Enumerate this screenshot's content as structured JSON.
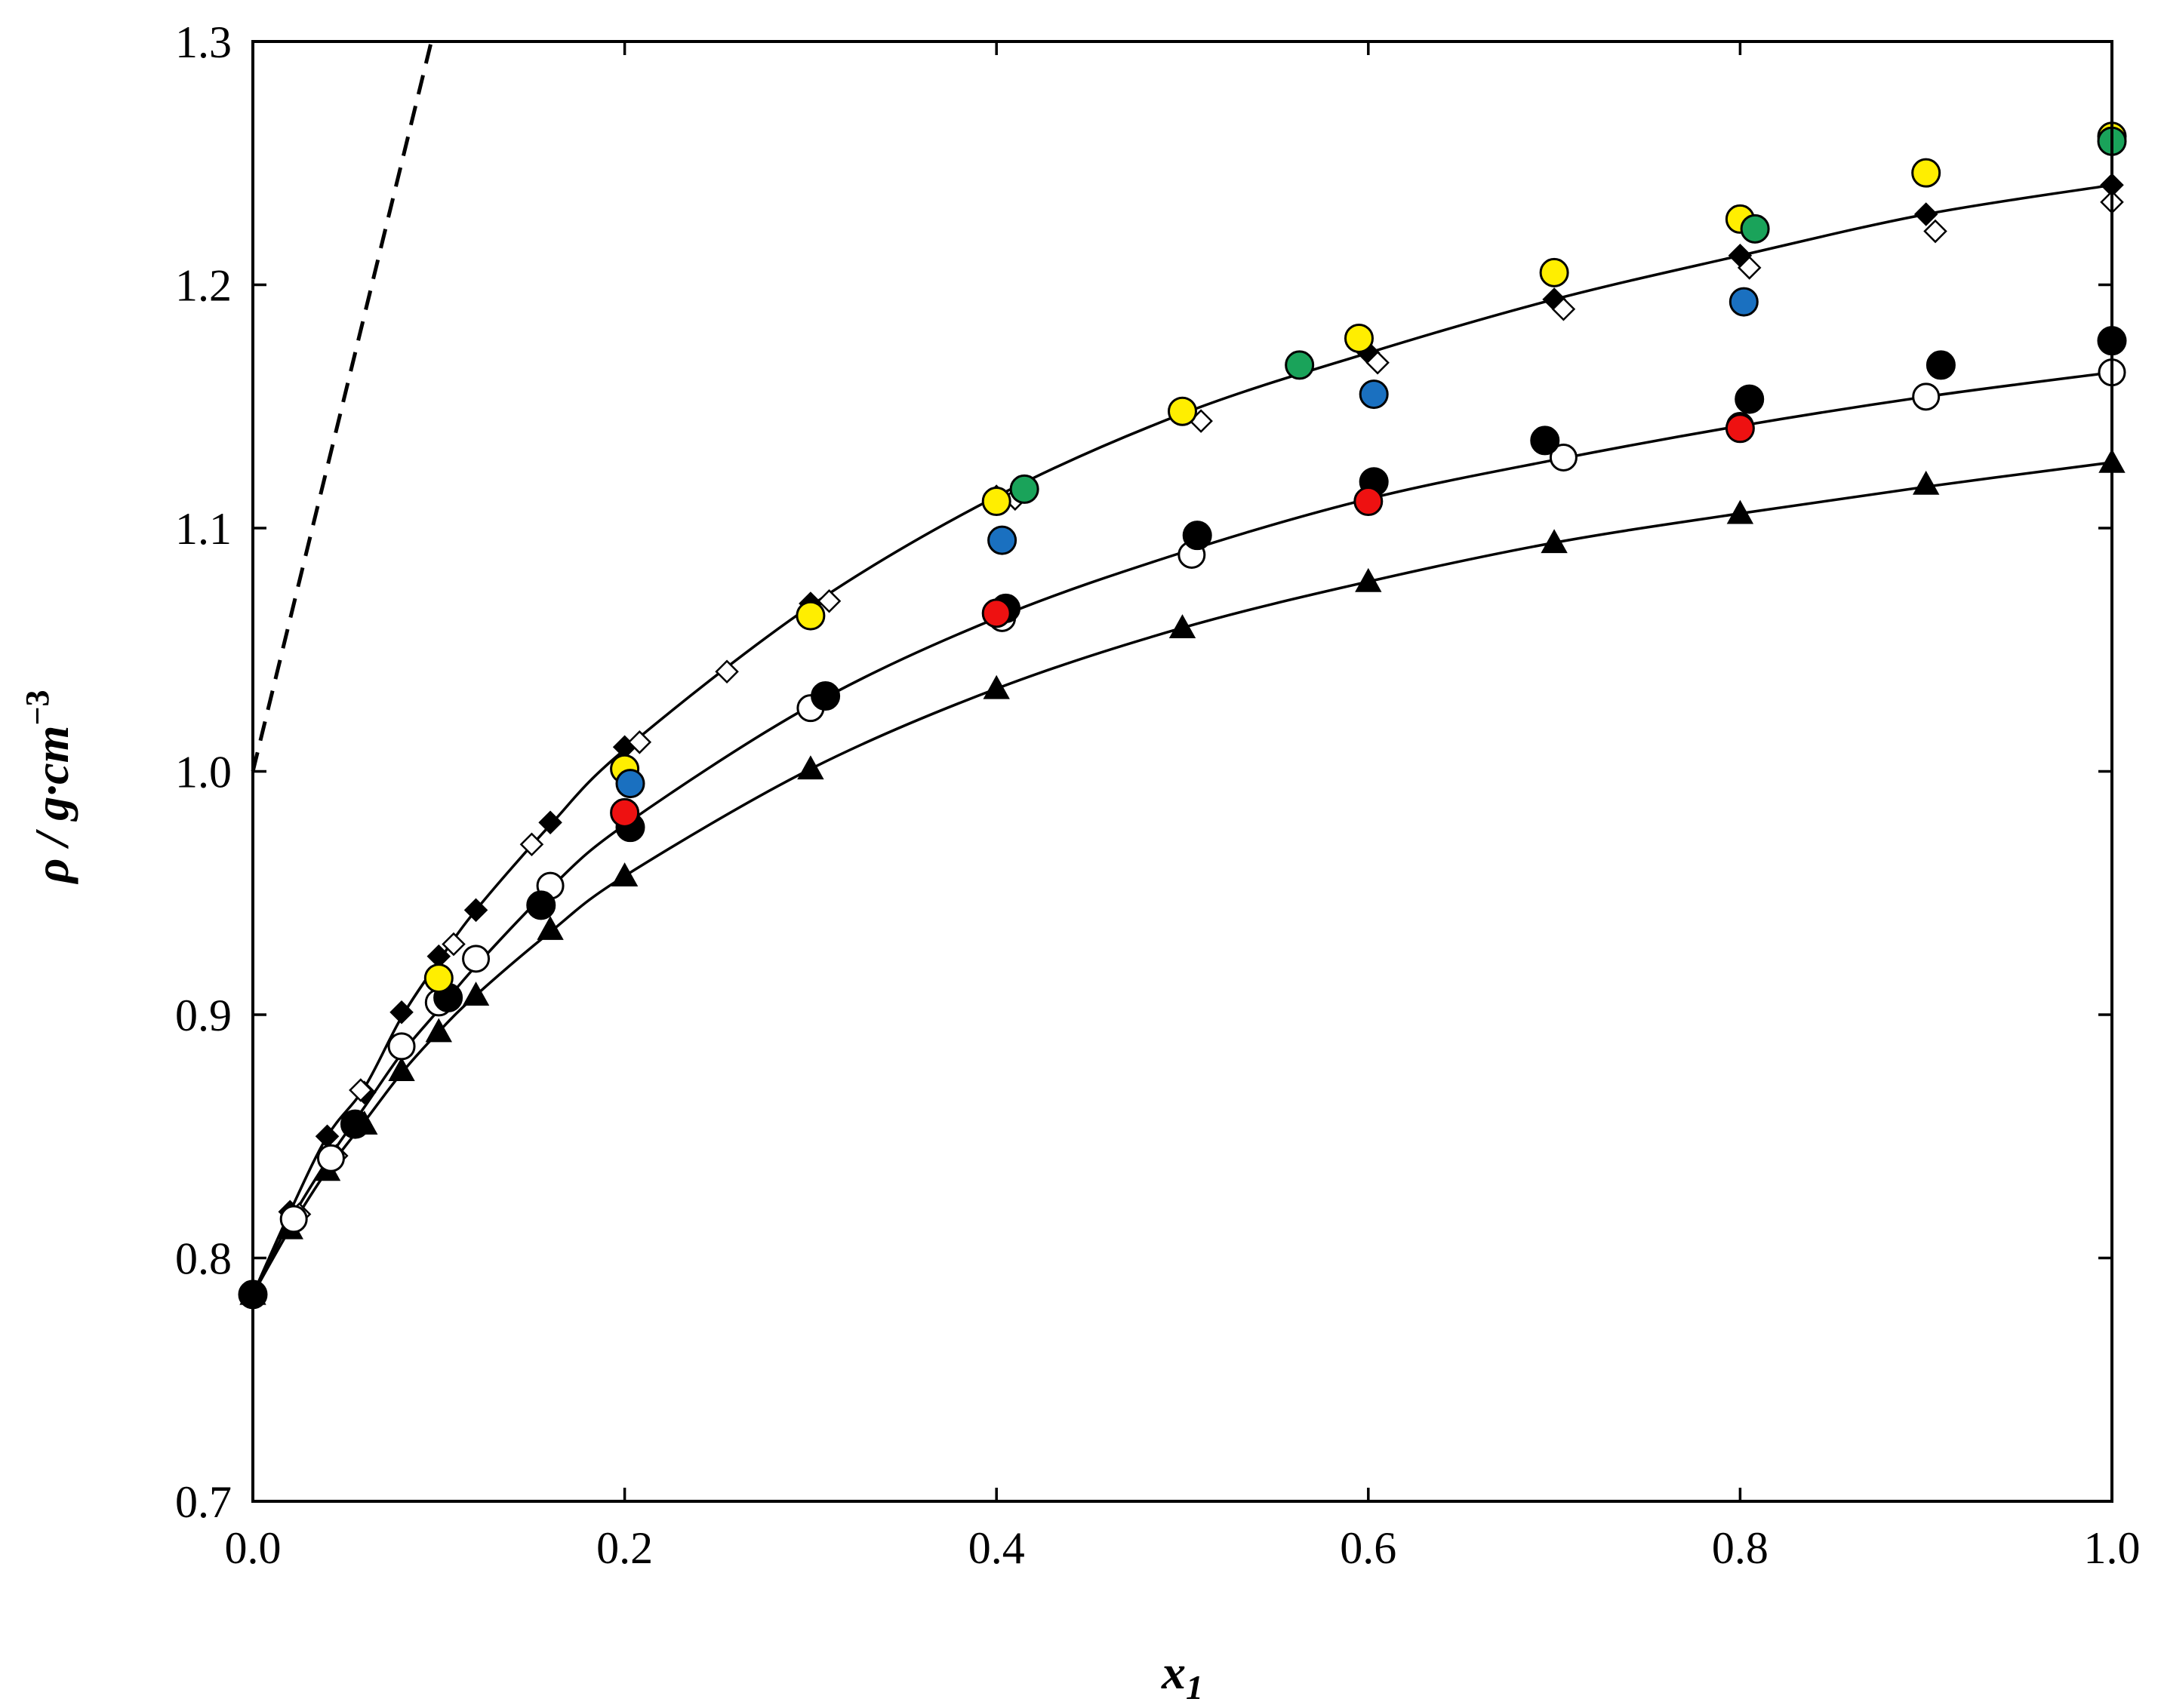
{
  "chart_data": {
    "type": "scatter",
    "title": "",
    "xlabel": "x",
    "xlabel_sub": "1",
    "ylabel": "ρ / g·cm",
    "ylabel_sup": "−3",
    "xlim": [
      0.0,
      1.0
    ],
    "ylim": [
      0.7,
      1.3
    ],
    "xticks": [
      "0.0",
      "0.2",
      "0.4",
      "0.6",
      "0.8",
      "1.0"
    ],
    "yticks": [
      "0.7",
      "0.8",
      "0.9",
      "1.0",
      "1.1",
      "1.2",
      "1.3"
    ],
    "grid": false,
    "legend": "none",
    "colors": {
      "black": "#000000",
      "yellow": "#ffee00",
      "green": "#1aa35a",
      "blue": "#1a70c0",
      "red": "#ee1111",
      "open": "#ffffff"
    },
    "series": [
      {
        "marker": "filled-diamond",
        "color": "#000000",
        "x": [
          0.0,
          0.02,
          0.04,
          0.06,
          0.08,
          0.1,
          0.12,
          0.16,
          0.2,
          0.3,
          0.4,
          0.5,
          0.6,
          0.7,
          0.8,
          0.9,
          1.0
        ],
        "y": [
          0.785,
          0.819,
          0.85,
          0.868,
          0.901,
          0.924,
          0.943,
          0.979,
          1.01,
          1.069,
          1.113,
          1.147,
          1.172,
          1.194,
          1.212,
          1.229,
          1.241
        ]
      },
      {
        "marker": "open-diamond",
        "color": "#000000",
        "x": [
          0.0,
          0.025,
          0.045,
          0.057,
          0.058,
          0.108,
          0.15,
          0.208,
          0.255,
          0.31,
          0.41,
          0.51,
          0.605,
          0.705,
          0.805,
          0.905,
          1.0
        ],
        "y": [
          0.785,
          0.818,
          0.842,
          0.856,
          0.869,
          0.929,
          0.97,
          1.012,
          1.041,
          1.07,
          1.112,
          1.144,
          1.168,
          1.19,
          1.207,
          1.222,
          1.234
        ]
      },
      {
        "marker": "filled-triangle",
        "color": "#000000",
        "x": [
          0.0,
          0.02,
          0.04,
          0.06,
          0.08,
          0.1,
          0.12,
          0.16,
          0.2,
          0.3,
          0.4,
          0.5,
          0.6,
          0.7,
          0.8,
          0.9,
          1.0
        ],
        "y": [
          0.785,
          0.812,
          0.836,
          0.855,
          0.877,
          0.893,
          0.908,
          0.935,
          0.957,
          1.001,
          1.034,
          1.059,
          1.078,
          1.094,
          1.106,
          1.118,
          1.127
        ]
      },
      {
        "marker": "open-circle",
        "color": "#000000",
        "x": [
          0.0,
          0.022,
          0.042,
          0.08,
          0.1,
          0.12,
          0.16,
          0.3,
          0.403,
          0.505,
          0.705,
          0.8,
          0.9,
          1.0
        ],
        "y": [
          0.785,
          0.816,
          0.841,
          0.887,
          0.905,
          0.923,
          0.953,
          1.026,
          1.063,
          1.089,
          1.129,
          1.142,
          1.154,
          1.164
        ]
      },
      {
        "marker": "filled-circle",
        "color": "#000000",
        "x": [
          0.0,
          0.055,
          0.105,
          0.155,
          0.203,
          0.308,
          0.405,
          0.508,
          0.603,
          0.695,
          0.805,
          0.908,
          1.0
        ],
        "y": [
          0.785,
          0.855,
          0.907,
          0.945,
          0.977,
          1.031,
          1.067,
          1.097,
          1.119,
          1.136,
          1.153,
          1.167,
          1.177
        ]
      },
      {
        "marker": "filled-circle",
        "color": "#ffee00",
        "x": [
          0.1,
          0.2,
          0.3,
          0.4,
          0.5,
          0.595,
          0.7,
          0.8,
          0.9,
          1.0
        ],
        "y": [
          0.915,
          1.001,
          1.064,
          1.111,
          1.148,
          1.178,
          1.205,
          1.227,
          1.246,
          1.261
        ]
      },
      {
        "marker": "filled-circle",
        "color": "#1aa35a",
        "x": [
          0.415,
          0.563,
          0.808,
          1.0
        ],
        "y": [
          1.116,
          1.167,
          1.223,
          1.259
        ]
      },
      {
        "marker": "filled-circle",
        "color": "#1a70c0",
        "x": [
          0.203,
          0.403,
          0.603,
          0.802
        ],
        "y": [
          0.995,
          1.095,
          1.155,
          1.193
        ]
      },
      {
        "marker": "filled-circle",
        "color": "#ee1111",
        "x": [
          0.2,
          0.4,
          0.6,
          0.8
        ],
        "y": [
          0.983,
          1.065,
          1.111,
          1.141
        ]
      }
    ],
    "fits": [
      {
        "color": "#000000",
        "x": [
          0.0,
          0.02,
          0.04,
          0.06,
          0.08,
          0.1,
          0.12,
          0.16,
          0.2,
          0.3,
          0.4,
          0.5,
          0.6,
          0.7,
          0.8,
          0.9,
          1.0
        ],
        "y": [
          0.785,
          0.819,
          0.85,
          0.87,
          0.899,
          0.922,
          0.943,
          0.978,
          1.009,
          1.068,
          1.113,
          1.147,
          1.172,
          1.194,
          1.212,
          1.229,
          1.241
        ]
      },
      {
        "color": "#000000",
        "x": [
          0.0,
          0.02,
          0.04,
          0.06,
          0.08,
          0.1,
          0.12,
          0.16,
          0.2,
          0.3,
          0.4,
          0.5,
          0.6,
          0.7,
          0.8,
          0.9,
          1.0
        ],
        "y": [
          0.785,
          0.815,
          0.84,
          0.862,
          0.884,
          0.902,
          0.92,
          0.952,
          0.978,
          1.027,
          1.063,
          1.09,
          1.112,
          1.128,
          1.142,
          1.154,
          1.164
        ]
      },
      {
        "color": "#000000",
        "x": [
          0.0,
          0.02,
          0.04,
          0.06,
          0.08,
          0.1,
          0.12,
          0.16,
          0.2,
          0.3,
          0.4,
          0.5,
          0.6,
          0.7,
          0.8,
          0.9,
          1.0
        ],
        "y": [
          0.785,
          0.812,
          0.836,
          0.856,
          0.876,
          0.893,
          0.908,
          0.934,
          0.957,
          1.001,
          1.034,
          1.059,
          1.078,
          1.094,
          1.106,
          1.117,
          1.127
        ]
      }
    ],
    "reference_line": {
      "style": "dashed",
      "color": "#000000",
      "x": [
        0.0,
        0.096
      ],
      "y": [
        1.0,
        1.3
      ]
    }
  }
}
